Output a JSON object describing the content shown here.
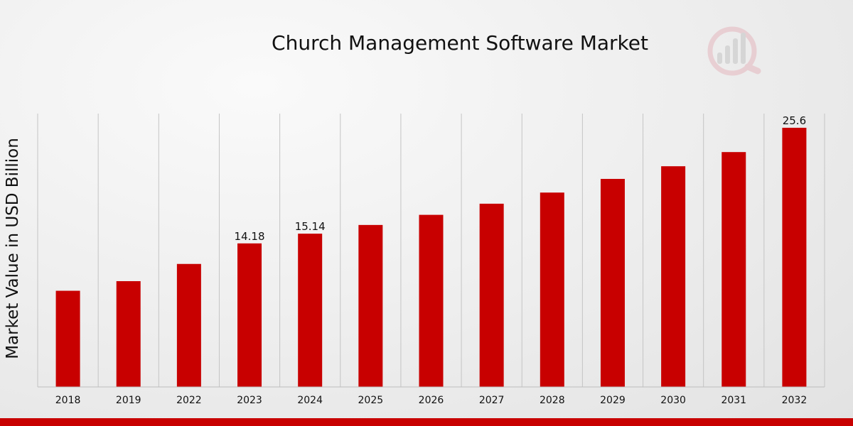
{
  "chart_data": {
    "type": "bar",
    "title": "Church Management Software Market",
    "xlabel": "",
    "ylabel": "Market Value in USD Billion",
    "categories": [
      "2018",
      "2019",
      "2022",
      "2023",
      "2024",
      "2025",
      "2026",
      "2027",
      "2028",
      "2029",
      "2030",
      "2031",
      "2032"
    ],
    "values": [
      9.5,
      10.45,
      12.15,
      14.18,
      15.14,
      16.0,
      17.0,
      18.1,
      19.2,
      20.55,
      21.8,
      23.2,
      25.6
    ],
    "data_labels": [
      {
        "index": 3,
        "text": "14.18"
      },
      {
        "index": 4,
        "text": "15.14"
      },
      {
        "index": 12,
        "text": "25.6"
      }
    ],
    "ylim": [
      0,
      27
    ],
    "grid": "vertical",
    "legend": "none"
  },
  "colors": {
    "bar": "#c80000",
    "grid": "#c4c4c4",
    "axis": "#bdbdbd",
    "strip": "#c80000",
    "logo": "#c8102e"
  },
  "logo": {
    "icon": "magnifier-bar-chart-icon"
  }
}
